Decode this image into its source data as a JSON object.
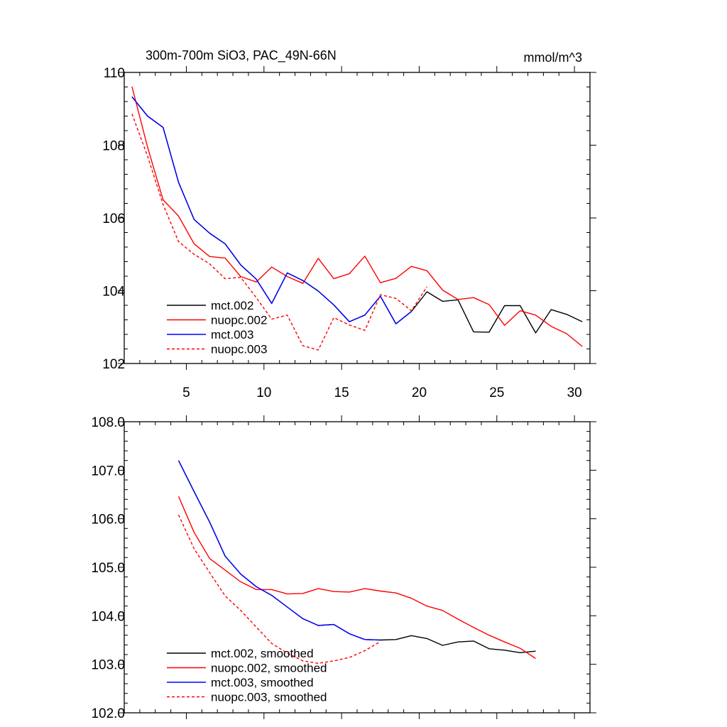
{
  "header": {
    "title": "300m-700m SiO3, PAC_49N-66N",
    "units": "mmol/m^3"
  },
  "chart_data": [
    {
      "type": "line",
      "title": "300m-700m SiO3, PAC_49N-66N",
      "units_label": "mmol/m^3",
      "xlim": [
        1.0,
        31.0
      ],
      "ylim": [
        102,
        110
      ],
      "x_ticks": [
        5,
        10,
        15,
        20,
        25,
        30
      ],
      "x_tick_labels": [
        "5",
        "10",
        "15",
        "20",
        "25",
        "30"
      ],
      "y_ticks": [
        102,
        104,
        106,
        108,
        110
      ],
      "y_tick_labels": [
        "102",
        "104",
        "106",
        "108",
        "110"
      ],
      "legend_position": "bottom-left",
      "series": [
        {
          "name": "mct.002",
          "color": "#000000",
          "dash": "solid",
          "x": [
            1.5,
            2.5,
            3.5,
            4.5,
            5.5,
            6.5,
            7.5,
            8.5,
            9.5,
            10.5,
            11.5,
            12.5,
            13.5,
            14.5,
            15.5,
            16.5,
            17.5,
            18.5,
            19.5,
            20.5,
            21.5,
            22.5,
            23.5,
            24.5,
            25.5,
            26.5,
            27.5,
            28.5,
            29.5,
            30.5
          ],
          "y": [
            109.33,
            108.8,
            108.49,
            106.98,
            105.96,
            105.58,
            105.29,
            104.71,
            104.32,
            103.65,
            104.49,
            104.28,
            103.99,
            103.61,
            103.15,
            103.33,
            103.85,
            103.09,
            103.43,
            103.97,
            103.71,
            103.75,
            102.87,
            102.86,
            103.59,
            103.59,
            102.84,
            103.48,
            103.35,
            103.15
          ]
        },
        {
          "name": "nuopc.002",
          "color": "#ff0000",
          "dash": "solid",
          "x": [
            1.5,
            2.5,
            3.5,
            4.5,
            5.5,
            6.5,
            7.5,
            8.5,
            9.5,
            10.5,
            11.5,
            12.5,
            13.5,
            14.5,
            15.5,
            16.5,
            17.5,
            18.5,
            19.5,
            20.5,
            21.5,
            22.5,
            23.5,
            24.5,
            25.5,
            26.5,
            27.5,
            28.5,
            29.5,
            30.5
          ],
          "y": [
            109.61,
            107.95,
            106.5,
            106.05,
            105.29,
            104.94,
            104.9,
            104.39,
            104.24,
            104.65,
            104.39,
            104.2,
            104.89,
            104.33,
            104.47,
            104.95,
            104.22,
            104.34,
            104.67,
            104.55,
            104.02,
            103.76,
            103.81,
            103.62,
            103.05,
            103.45,
            103.33,
            103.02,
            102.82,
            102.47
          ]
        },
        {
          "name": "mct.003",
          "color": "#0000ff",
          "dash": "solid",
          "x": [
            1.5,
            2.5,
            3.5,
            4.5,
            5.5,
            6.5,
            7.5,
            8.5,
            9.5,
            10.5,
            11.5,
            12.5,
            13.5,
            14.5,
            15.5,
            16.5,
            17.5,
            18.5,
            19.5
          ],
          "y": [
            109.33,
            108.8,
            108.49,
            106.98,
            105.96,
            105.58,
            105.29,
            104.71,
            104.32,
            103.65,
            104.49,
            104.28,
            103.99,
            103.61,
            103.15,
            103.33,
            103.85,
            103.09,
            103.43
          ]
        },
        {
          "name": "nuopc.003",
          "color": "#ff0000",
          "dash": "dashed",
          "x": [
            1.5,
            2.5,
            3.5,
            4.5,
            5.5,
            6.5,
            7.5,
            8.5,
            9.5,
            10.5,
            11.5,
            12.5,
            13.5,
            14.5,
            15.5,
            16.5,
            17.5,
            18.5,
            19.5,
            20.5
          ],
          "y": [
            108.86,
            107.7,
            106.37,
            105.35,
            105.0,
            104.74,
            104.33,
            104.37,
            103.81,
            103.22,
            103.33,
            102.49,
            102.37,
            103.26,
            103.06,
            102.91,
            103.89,
            103.79,
            103.45,
            104.11
          ]
        }
      ]
    },
    {
      "type": "line",
      "xlim": [
        1.0,
        31.0
      ],
      "ylim": [
        102.0,
        108.0
      ],
      "x_ticks": [
        5,
        10,
        15,
        20,
        25,
        30
      ],
      "y_ticks": [
        102.0,
        103.0,
        104.0,
        105.0,
        106.0,
        107.0,
        108.0
      ],
      "y_tick_labels": [
        "102.0",
        "103.0",
        "104.0",
        "105.0",
        "106.0",
        "107.0",
        "108.0"
      ],
      "legend_position": "bottom-left",
      "series": [
        {
          "name": "mct.002, smoothed",
          "color": "#000000",
          "dash": "solid",
          "x": [
            4.5,
            5.5,
            6.5,
            7.5,
            8.5,
            9.5,
            10.5,
            11.5,
            12.5,
            13.5,
            14.5,
            15.5,
            16.5,
            17.5,
            18.5,
            19.5,
            20.5,
            21.5,
            22.5,
            23.5,
            24.5,
            25.5,
            26.5,
            27.5
          ],
          "y": [
            107.2,
            106.56,
            105.93,
            105.23,
            104.86,
            104.6,
            104.42,
            104.18,
            103.94,
            103.8,
            103.82,
            103.63,
            103.51,
            103.5,
            103.51,
            103.59,
            103.53,
            103.39,
            103.46,
            103.48,
            103.32,
            103.29,
            103.24,
            103.27
          ]
        },
        {
          "name": "nuopc.002, smoothed",
          "color": "#ff0000",
          "dash": "solid",
          "x": [
            4.5,
            5.5,
            6.5,
            7.5,
            8.5,
            9.5,
            10.5,
            11.5,
            12.5,
            13.5,
            14.5,
            15.5,
            16.5,
            17.5,
            18.5,
            19.5,
            20.5,
            21.5,
            22.5,
            23.5,
            24.5,
            25.5,
            26.5,
            27.5
          ],
          "y": [
            106.46,
            105.72,
            105.18,
            104.94,
            104.7,
            104.54,
            104.54,
            104.45,
            104.46,
            104.56,
            104.5,
            104.49,
            104.56,
            104.51,
            104.47,
            104.36,
            104.2,
            104.11,
            103.93,
            103.76,
            103.6,
            103.46,
            103.33,
            103.12
          ]
        },
        {
          "name": "mct.003, smoothed",
          "color": "#0000ff",
          "dash": "solid",
          "x": [
            4.5,
            5.5,
            6.5,
            7.5,
            8.5,
            9.5,
            10.5,
            11.5,
            12.5,
            13.5,
            14.5,
            15.5,
            16.5,
            17.5
          ],
          "y": [
            107.2,
            106.56,
            105.93,
            105.23,
            104.86,
            104.6,
            104.42,
            104.18,
            103.94,
            103.8,
            103.82,
            103.63,
            103.51,
            103.5
          ]
        },
        {
          "name": "nuopc.003, smoothed",
          "color": "#ff0000",
          "dash": "dashed",
          "x": [
            4.5,
            5.5,
            6.5,
            7.5,
            8.5,
            9.5,
            10.5,
            11.5,
            12.5,
            13.5,
            14.5,
            15.5,
            16.5,
            17.5
          ],
          "y": [
            106.08,
            105.38,
            104.89,
            104.41,
            104.11,
            103.77,
            103.43,
            103.23,
            103.07,
            103.02,
            103.07,
            103.14,
            103.28,
            103.47
          ]
        }
      ]
    }
  ]
}
